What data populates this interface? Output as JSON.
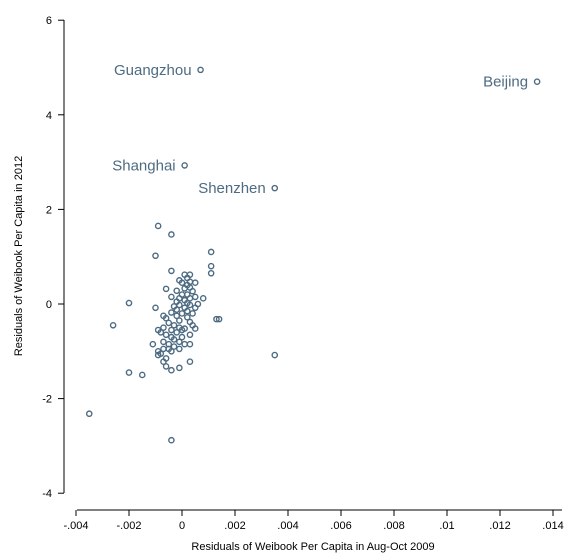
{
  "chart_data": {
    "type": "scatter",
    "xlabel": "Residuals of Weibook Per Capita in Aug-Oct 2009",
    "ylabel": "Residuals of Weibook Per Capita in 2012",
    "xlim": [
      -0.0041,
      0.0146
    ],
    "ylim": [
      -4,
      6
    ],
    "x_ticks": [
      -0.004,
      -0.002,
      0,
      0.002,
      0.004,
      0.006,
      0.008,
      0.01,
      0.012,
      0.014
    ],
    "x_tick_labels": [
      "-.004",
      "-.002",
      "0",
      ".002",
      ".004",
      ".006",
      ".008",
      ".01",
      ".012",
      ".014"
    ],
    "y_ticks": [
      -4,
      -2,
      0,
      2,
      4,
      6
    ],
    "y_tick_labels": [
      "-4",
      "-2",
      "0",
      "2",
      "4",
      "6"
    ],
    "grid": false,
    "marker_color": "#4d6b82",
    "annotations": [
      {
        "text": "Guangzhou",
        "x": 0.0007,
        "y": 4.95
      },
      {
        "text": "Beijing",
        "x": 0.0134,
        "y": 4.7
      },
      {
        "text": "Shanghai",
        "x": 0.0001,
        "y": 2.93
      },
      {
        "text": "Shenzhen",
        "x": 0.0035,
        "y": 2.45
      }
    ],
    "points": [
      [
        0.0007,
        4.95
      ],
      [
        0.0134,
        4.7
      ],
      [
        0.0001,
        2.93
      ],
      [
        0.0035,
        2.45
      ],
      [
        -0.0009,
        1.65
      ],
      [
        -0.0004,
        1.47
      ],
      [
        0.0011,
        1.1
      ],
      [
        -0.001,
        1.02
      ],
      [
        0.0011,
        0.8
      ],
      [
        -0.0004,
        0.7
      ],
      [
        0.0011,
        0.65
      ],
      [
        0.0001,
        0.62
      ],
      [
        0.0003,
        0.62
      ],
      [
        0.0002,
        0.55
      ],
      [
        -0.0001,
        0.5
      ],
      [
        0.0003,
        0.47
      ],
      [
        0.0,
        0.45
      ],
      [
        0.0005,
        0.45
      ],
      [
        0.0002,
        0.4
      ],
      [
        -0.0006,
        0.32
      ],
      [
        0.0001,
        0.33
      ],
      [
        0.0003,
        0.35
      ],
      [
        -0.0002,
        0.28
      ],
      [
        0.0004,
        0.27
      ],
      [
        0.0,
        0.2
      ],
      [
        0.0002,
        0.2
      ],
      [
        -0.0004,
        0.15
      ],
      [
        0.0005,
        0.15
      ],
      [
        -0.0001,
        0.12
      ],
      [
        0.0003,
        0.12
      ],
      [
        0.0008,
        0.12
      ],
      [
        0.0001,
        0.08
      ],
      [
        -0.002,
        0.02
      ],
      [
        -0.0002,
        0.05
      ],
      [
        0.0002,
        0.02
      ],
      [
        0.0006,
        0.0
      ],
      [
        -0.0001,
        -0.02
      ],
      [
        0.0003,
        -0.02
      ],
      [
        -0.001,
        -0.08
      ],
      [
        -0.0003,
        -0.05
      ],
      [
        0.0001,
        -0.08
      ],
      [
        0.0005,
        -0.08
      ],
      [
        -0.0002,
        -0.12
      ],
      [
        0.0002,
        -0.15
      ],
      [
        -0.0004,
        -0.18
      ],
      [
        0.0,
        -0.2
      ],
      [
        0.0004,
        -0.2
      ],
      [
        -0.0007,
        -0.25
      ],
      [
        -0.0002,
        -0.25
      ],
      [
        0.0002,
        -0.28
      ],
      [
        -0.0006,
        -0.3
      ],
      [
        0.0013,
        -0.32
      ],
      [
        0.0014,
        -0.32
      ],
      [
        -0.0001,
        -0.35
      ],
      [
        0.0003,
        -0.38
      ],
      [
        -0.0005,
        -0.4
      ],
      [
        -0.0026,
        -0.45
      ],
      [
        -0.0003,
        -0.45
      ],
      [
        0.0004,
        -0.45
      ],
      [
        -0.0007,
        -0.5
      ],
      [
        -0.0001,
        -0.5
      ],
      [
        0.0001,
        -0.52
      ],
      [
        0.0005,
        -0.52
      ],
      [
        -0.0009,
        -0.55
      ],
      [
        -0.0004,
        -0.55
      ],
      [
        0.0,
        -0.55
      ],
      [
        -0.0008,
        -0.6
      ],
      [
        -0.0002,
        -0.6
      ],
      [
        -0.0006,
        -0.65
      ],
      [
        0.0003,
        -0.65
      ],
      [
        -0.0004,
        -0.7
      ],
      [
        0.0,
        -0.7
      ],
      [
        -0.0003,
        -0.75
      ],
      [
        -0.0007,
        -0.8
      ],
      [
        -0.0001,
        -0.8
      ],
      [
        -0.0011,
        -0.85
      ],
      [
        -0.0005,
        -0.85
      ],
      [
        0.0001,
        -0.85
      ],
      [
        0.0003,
        -0.85
      ],
      [
        -0.0003,
        -0.9
      ],
      [
        -0.0007,
        -0.95
      ],
      [
        -0.0005,
        -0.95
      ],
      [
        -0.0001,
        -0.95
      ],
      [
        -0.0009,
        -1.0
      ],
      [
        -0.0004,
        -1.0
      ],
      [
        -0.0008,
        -1.05
      ],
      [
        0.0035,
        -1.08
      ],
      [
        -0.0009,
        -1.08
      ],
      [
        -0.0006,
        -1.15
      ],
      [
        -0.0007,
        -1.22
      ],
      [
        0.0003,
        -1.22
      ],
      [
        -0.0006,
        -1.32
      ],
      [
        -0.0001,
        -1.35
      ],
      [
        -0.0004,
        -1.4
      ],
      [
        -0.002,
        -1.45
      ],
      [
        -0.0015,
        -1.5
      ],
      [
        -0.0035,
        -2.32
      ],
      [
        -0.0004,
        -2.88
      ]
    ]
  }
}
